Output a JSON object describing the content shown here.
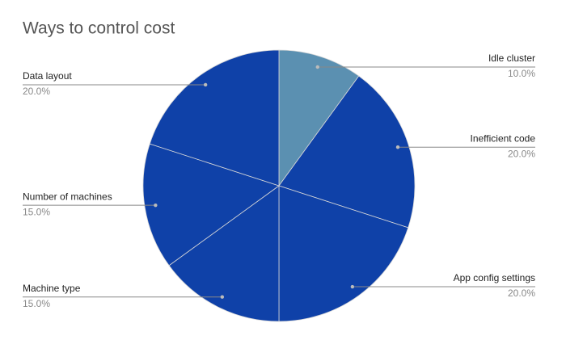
{
  "chart_data": {
    "type": "pie",
    "title": "Ways to control cost",
    "categories": [
      "Idle cluster",
      "Inefficient code",
      "App config settings",
      "Machine type",
      "Number of machines",
      "Data layout"
    ],
    "values": [
      10,
      20,
      20,
      15,
      15,
      20
    ],
    "value_labels": [
      "10.0%",
      "20.0%",
      "20.0%",
      "15.0%",
      "15.0%",
      "20.0%"
    ],
    "colors": [
      "#5b90b1",
      "#0f41a8",
      "#0f41a8",
      "#0f41a8",
      "#0f41a8",
      "#0f41a8"
    ]
  }
}
